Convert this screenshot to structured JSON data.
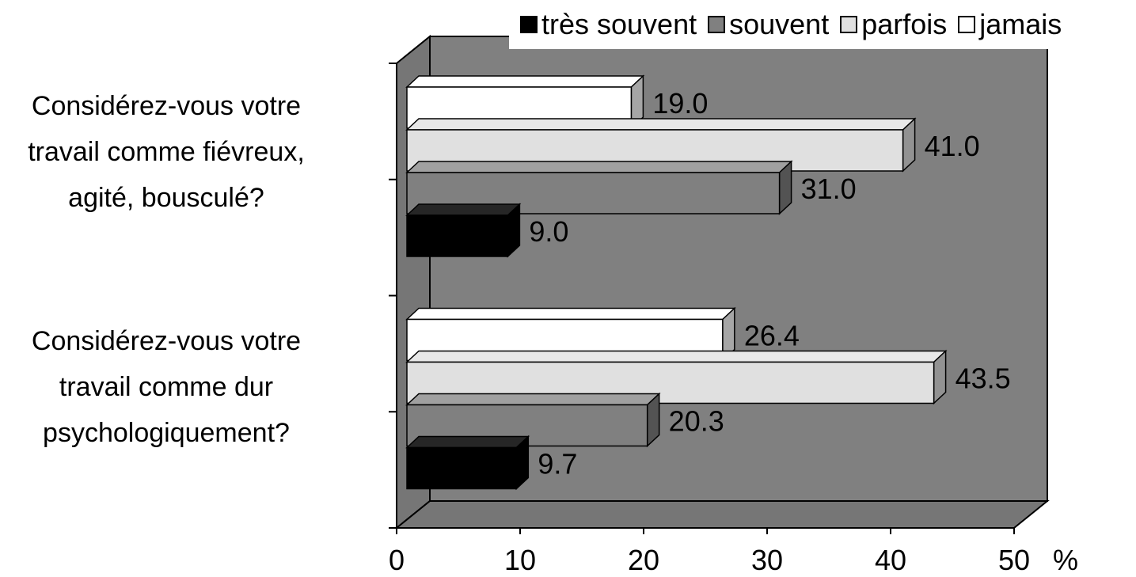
{
  "chart_data": {
    "type": "bar",
    "orientation": "horizontal",
    "categories": [
      "Considérez-vous votre\ntravail comme fiévreux,\nagité, bousculé?",
      "Considérez-vous votre\ntravail comme dur\npsychologiquement?"
    ],
    "series": [
      {
        "name": "très souvent",
        "color": "#000000",
        "values": [
          9.0,
          9.7
        ]
      },
      {
        "name": "souvent",
        "color": "#808080",
        "values": [
          31.0,
          20.3
        ]
      },
      {
        "name": "parfois",
        "color": "#e0e0e0",
        "values": [
          41.0,
          43.5
        ]
      },
      {
        "name": "jamais",
        "color": "#ffffff",
        "values": [
          19.0,
          26.4
        ]
      }
    ],
    "data_labels": [
      [
        "9.0",
        "9.7"
      ],
      [
        "31.0",
        "20.3"
      ],
      [
        "41.0",
        "43.5"
      ],
      [
        "19.0",
        "26.4"
      ]
    ],
    "xlim": [
      0,
      50
    ],
    "xticks": [
      "0",
      "10",
      "20",
      "30",
      "40",
      "50"
    ],
    "xunit": "%",
    "legend_position": "top-right",
    "style": "3d",
    "wall_color": "#808080"
  }
}
